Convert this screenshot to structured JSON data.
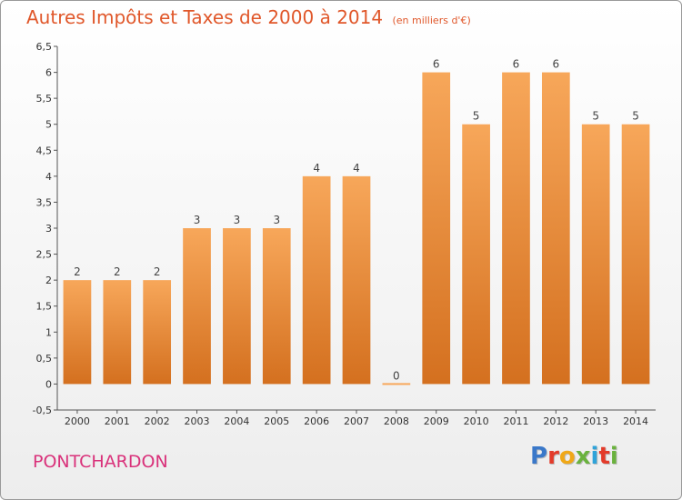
{
  "header": {
    "title": "Autres Impôts et Taxes de 2000 à 2014",
    "unit": "(en milliers d'€)"
  },
  "footer": {
    "town": "PONTCHARDON",
    "logo_letters": [
      "P",
      "r",
      "o",
      "x",
      "i",
      "t",
      "i"
    ]
  },
  "colors": {
    "title": "#e0572a",
    "town": "#d9317a",
    "bar_light": "#f7a75a",
    "bar_dark": "#d4701f",
    "logo": [
      "#3a78c9",
      "#e33b2a",
      "#f0a818",
      "#6ab23e",
      "#2fa3d9",
      "#e33b2a",
      "#6ab23e"
    ]
  },
  "chart_data": {
    "type": "bar",
    "categories": [
      "2000",
      "2001",
      "2002",
      "2003",
      "2004",
      "2005",
      "2006",
      "2007",
      "2008",
      "2009",
      "2010",
      "2011",
      "2012",
      "2013",
      "2014"
    ],
    "values": [
      2,
      2,
      2,
      3,
      3,
      3,
      4,
      4,
      0,
      6,
      5,
      6,
      6,
      5,
      5
    ],
    "value_labels": [
      "2",
      "2",
      "2",
      "3",
      "3",
      "3",
      "4",
      "4",
      "0",
      "6",
      "5",
      "6",
      "6",
      "5",
      "5"
    ],
    "title": "Autres Impôts et Taxes de 2000 à 2014",
    "xlabel": "",
    "ylabel": "",
    "ylim": [
      -0.5,
      6.5
    ],
    "yticks": [
      "-0,5",
      "0",
      "0,5",
      "1",
      "1,5",
      "2",
      "2,5",
      "3",
      "3,5",
      "4",
      "4,5",
      "5",
      "5,5",
      "6",
      "6,5"
    ],
    "grid": false
  }
}
